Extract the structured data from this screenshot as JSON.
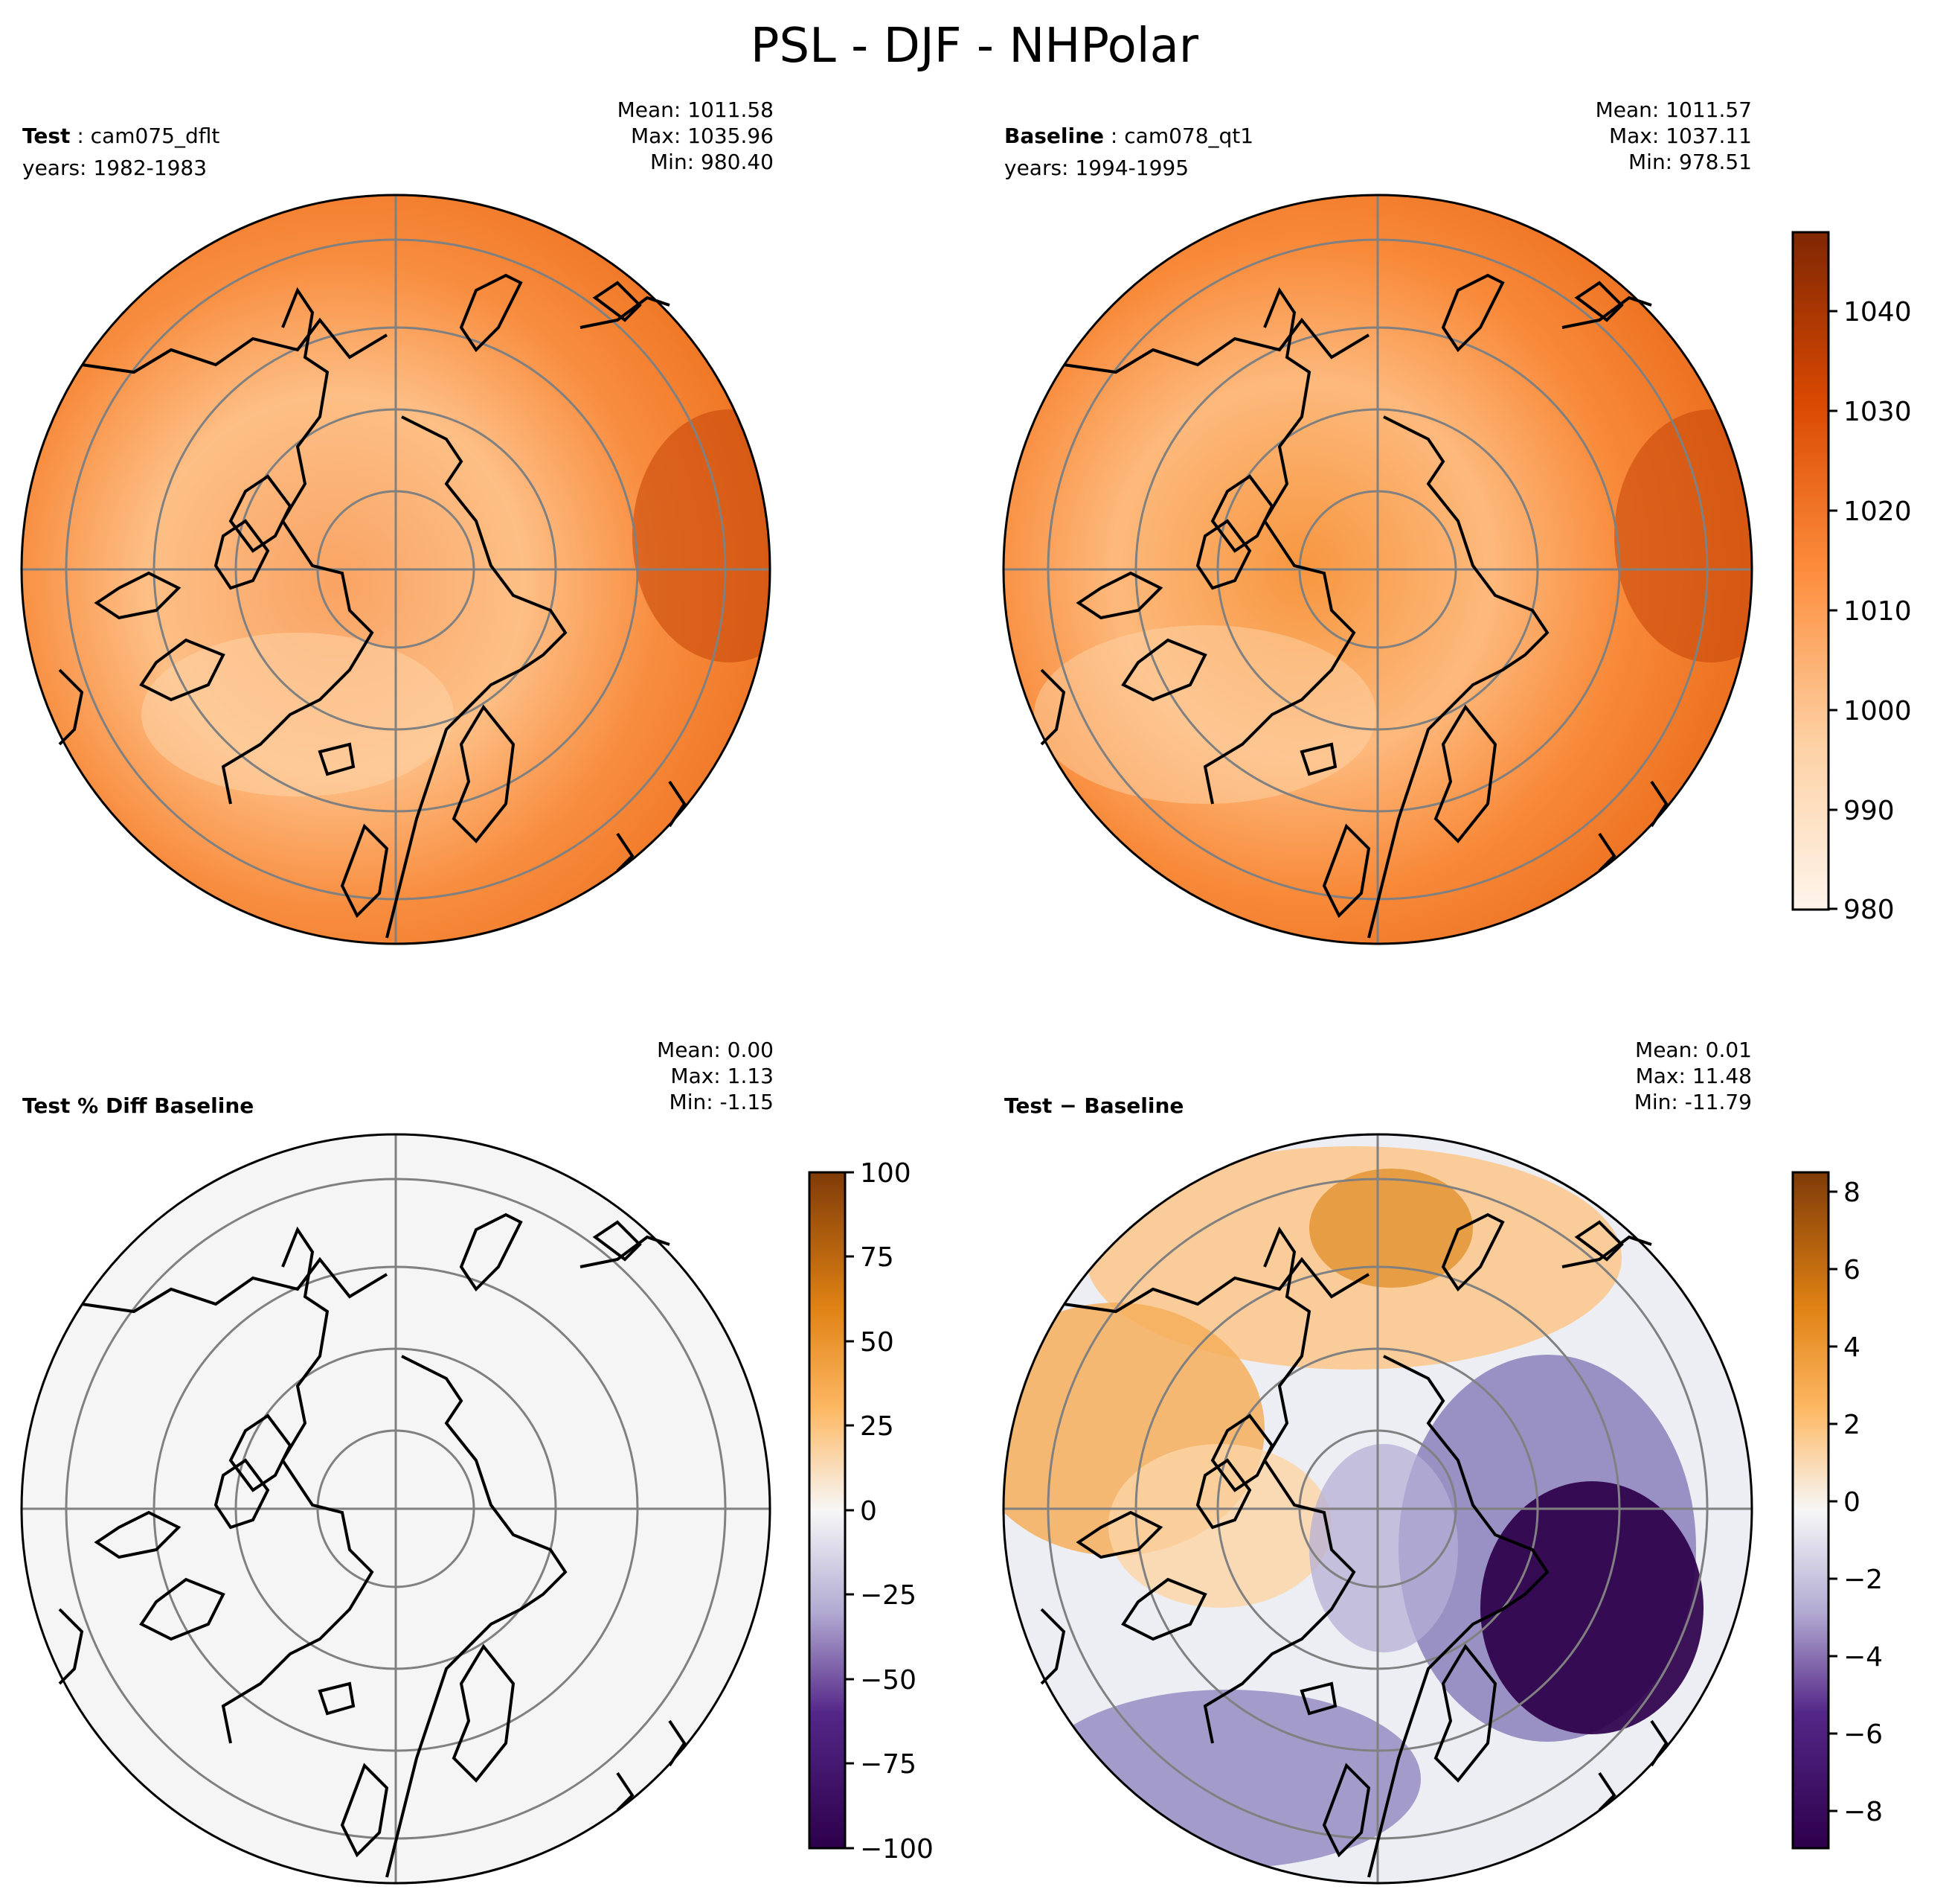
{
  "figure": {
    "title": "PSL - DJF - NHPolar"
  },
  "panels": [
    {
      "id": "test",
      "case_label": "Test",
      "case_name": "cam075_dflt",
      "years": "years: 1982-1983",
      "stats": {
        "mean": "Mean: 1011.58",
        "max": "Max: 1035.96",
        "min": "Min: 980.40"
      }
    },
    {
      "id": "baseline",
      "case_label": "Baseline",
      "case_name": "cam078_qt1",
      "years": "years: 1994-1995",
      "stats": {
        "mean": "Mean: 1011.57",
        "max": "Max: 1037.11",
        "min": "Min: 978.51"
      }
    },
    {
      "id": "pctdiff",
      "case_label": "Test % Diff Baseline",
      "stats": {
        "mean": "Mean:  0.00",
        "max": "Max:  1.13",
        "min": "Min: -1.15"
      }
    },
    {
      "id": "diff",
      "case_label": "Test − Baseline",
      "stats": {
        "mean": "Mean:  0.01",
        "max": "Max: 11.48",
        "min": "Min: -11.79"
      }
    }
  ],
  "colorbars": {
    "field": {
      "colormap": "Oranges",
      "range": [
        980,
        1048
      ],
      "ticks": [
        "1040",
        "1030",
        "1020",
        "1010",
        "1000",
        "990",
        "980"
      ]
    },
    "pct": {
      "colormap": "PuOr_r",
      "range": [
        -100,
        100
      ],
      "ticks": [
        "100",
        "75",
        "50",
        "25",
        "0",
        "−25",
        "−50",
        "−75",
        "−100"
      ]
    },
    "diff": {
      "colormap": "PuOr_r",
      "range": [
        -9,
        8.5
      ],
      "ticks": [
        "8",
        "6",
        "4",
        "2",
        "0",
        "−2",
        "−4",
        "−6",
        "−8"
      ]
    }
  },
  "colors": {
    "orange_dark": "#7f2704",
    "orange_mid": "#e6600d",
    "orange_light": "#fdd9b4",
    "orange_pale": "#fff5eb",
    "purple_dark": "#2d004b",
    "purple_light": "#d8daeb",
    "neutral": "#f7f7f7",
    "brown_dark": "#7f3b08",
    "orange_gold": "#fdb863",
    "gridline": "#808080"
  }
}
